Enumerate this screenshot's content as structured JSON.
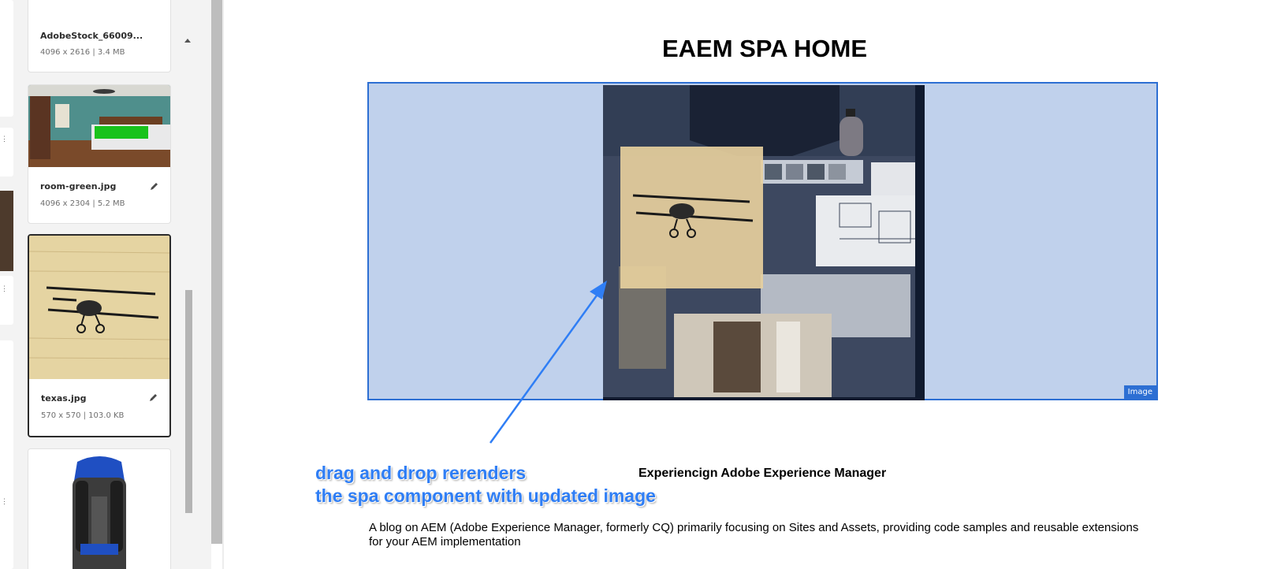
{
  "asset_panel": {
    "cards": [
      {
        "name": "AdobeStock_66009...",
        "meta": "4096 x 2616 | 3.4 MB"
      },
      {
        "name": "room-green.jpg",
        "meta": "4096 x 2304 | 5.2 MB"
      },
      {
        "name": "texas.jpg",
        "meta": "570 x 570 | 103.0 KB"
      },
      {
        "name": "",
        "meta": ""
      }
    ],
    "icons": {
      "edit": "pencil-icon",
      "scroll_up": "chevron-up-icon"
    }
  },
  "page": {
    "title": "EAEM SPA HOME",
    "image_component_label": "Image",
    "teaser_title": "Experiencign Adobe Experience Manager",
    "teaser_description": "A blog on AEM (Adobe Experience Manager, formerly CQ) primarily focusing on Sites and Assets, providing code samples and reusable extensions for your AEM implementation"
  },
  "annotation": {
    "line1": "drag and drop rerenders",
    "line2": "the spa component with updated image",
    "color": "#2f7ef5"
  },
  "colors": {
    "selection_overlay": "#c0d1ec",
    "selection_border": "#2d6fd3"
  }
}
